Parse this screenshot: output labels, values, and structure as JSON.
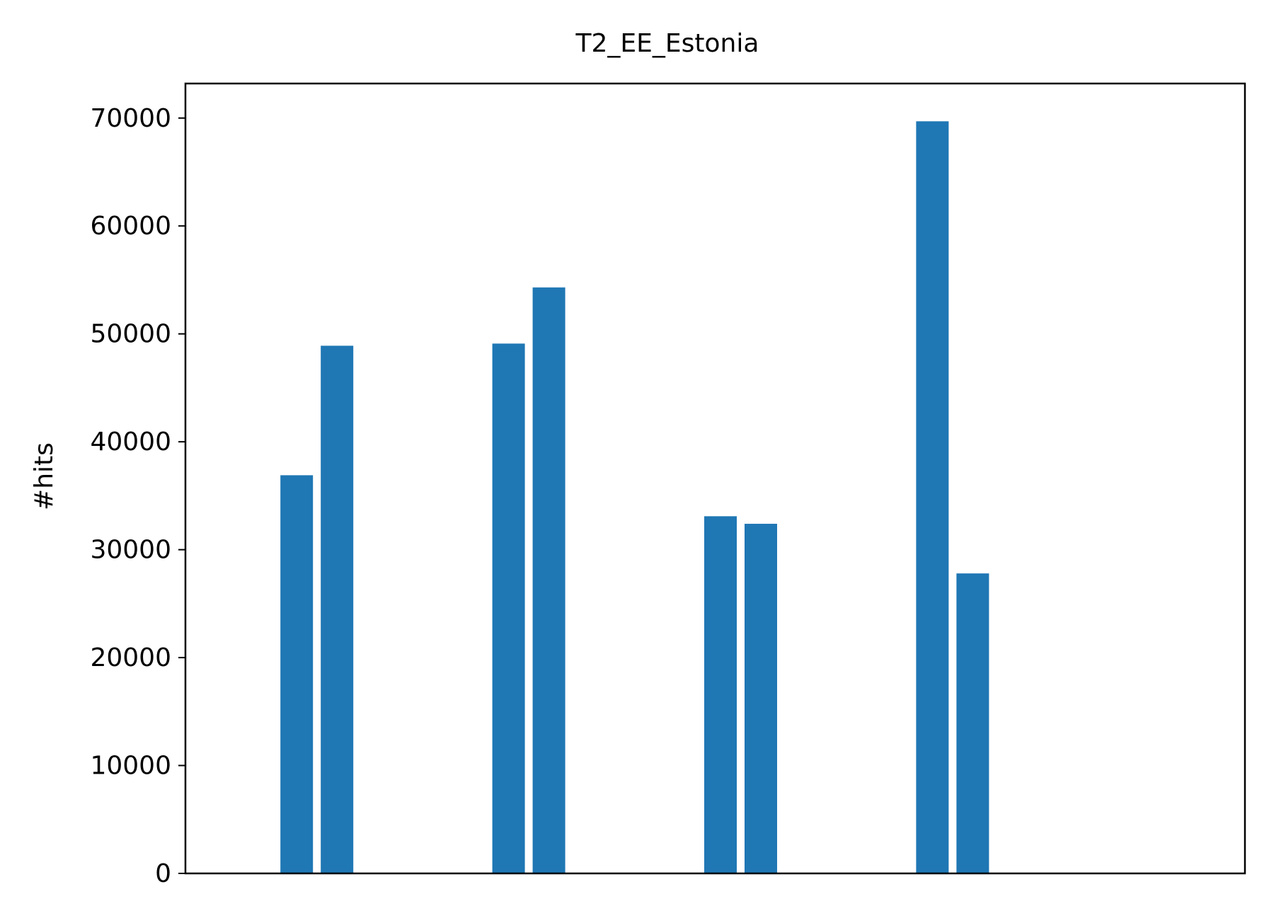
{
  "chart_data": {
    "type": "bar",
    "title": "T2_EE_Estonia",
    "xlabel": "",
    "ylabel": "#hits",
    "ylim": [
      0,
      73200
    ],
    "yticks": [
      0,
      10000,
      20000,
      30000,
      40000,
      50000,
      60000,
      70000
    ],
    "ytick_labels": [
      "0",
      "10000",
      "20000",
      "30000",
      "40000",
      "50000",
      "60000",
      "70000"
    ],
    "grid": false,
    "legend": "none",
    "bar_color": "#1f77b4",
    "groups": [
      {
        "values": [
          36900,
          48900
        ]
      },
      {
        "values": [
          49100,
          54300
        ]
      },
      {
        "values": [
          33100,
          32400
        ]
      },
      {
        "values": [
          69700,
          27800
        ]
      }
    ]
  }
}
